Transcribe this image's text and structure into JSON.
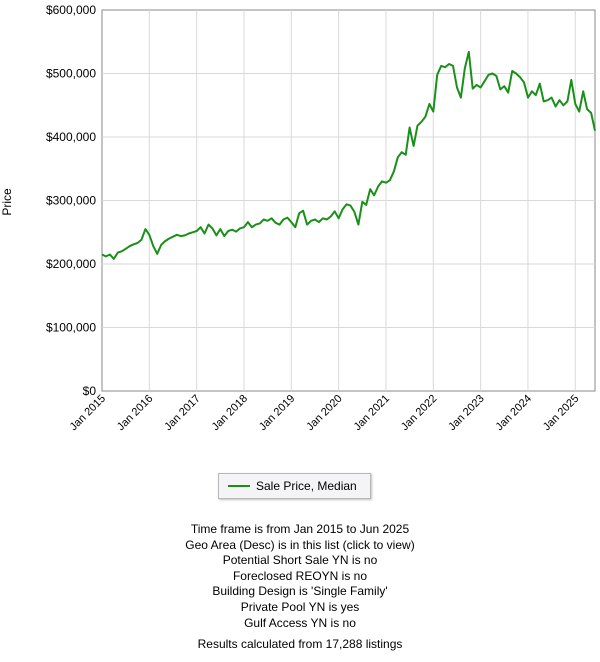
{
  "chart_data": {
    "type": "line",
    "ylabel": "Price",
    "xlabel": "",
    "ylim": [
      0,
      600000
    ],
    "xlim": [
      "2015-01",
      "2025-06"
    ],
    "grid": true,
    "y_ticks": [
      "$0",
      "$100,000",
      "$200,000",
      "$300,000",
      "$400,000",
      "$500,000",
      "$600,000"
    ],
    "x_ticks": [
      "Jan 2015",
      "Jan 2016",
      "Jan 2017",
      "Jan 2018",
      "Jan 2019",
      "Jan 2020",
      "Jan 2021",
      "Jan 2022",
      "Jan 2023",
      "Jan 2024",
      "Jan 2025"
    ],
    "series": [
      {
        "name": "Sale Price, Median",
        "color": "#1a8f1a",
        "x": [
          "2015-01",
          "2015-02",
          "2015-03",
          "2015-04",
          "2015-05",
          "2015-06",
          "2015-07",
          "2015-08",
          "2015-09",
          "2015-10",
          "2015-11",
          "2015-12",
          "2016-01",
          "2016-02",
          "2016-03",
          "2016-04",
          "2016-05",
          "2016-06",
          "2016-07",
          "2016-08",
          "2016-09",
          "2016-10",
          "2016-11",
          "2016-12",
          "2017-01",
          "2017-02",
          "2017-03",
          "2017-04",
          "2017-05",
          "2017-06",
          "2017-07",
          "2017-08",
          "2017-09",
          "2017-10",
          "2017-11",
          "2017-12",
          "2018-01",
          "2018-02",
          "2018-03",
          "2018-04",
          "2018-05",
          "2018-06",
          "2018-07",
          "2018-08",
          "2018-09",
          "2018-10",
          "2018-11",
          "2018-12",
          "2019-01",
          "2019-02",
          "2019-03",
          "2019-04",
          "2019-05",
          "2019-06",
          "2019-07",
          "2019-08",
          "2019-09",
          "2019-10",
          "2019-11",
          "2019-12",
          "2020-01",
          "2020-02",
          "2020-03",
          "2020-04",
          "2020-05",
          "2020-06",
          "2020-07",
          "2020-08",
          "2020-09",
          "2020-10",
          "2020-11",
          "2020-12",
          "2021-01",
          "2021-02",
          "2021-03",
          "2021-04",
          "2021-05",
          "2021-06",
          "2021-07",
          "2021-08",
          "2021-09",
          "2021-10",
          "2021-11",
          "2021-12",
          "2022-01",
          "2022-02",
          "2022-03",
          "2022-04",
          "2022-05",
          "2022-06",
          "2022-07",
          "2022-08",
          "2022-09",
          "2022-10",
          "2022-11",
          "2022-12",
          "2023-01",
          "2023-02",
          "2023-03",
          "2023-04",
          "2023-05",
          "2023-06",
          "2023-07",
          "2023-08",
          "2023-09",
          "2023-10",
          "2023-11",
          "2023-12",
          "2024-01",
          "2024-02",
          "2024-03",
          "2024-04",
          "2024-05",
          "2024-06",
          "2024-07",
          "2024-08",
          "2024-09",
          "2024-10",
          "2024-11",
          "2024-12",
          "2025-01",
          "2025-02",
          "2025-03",
          "2025-04",
          "2025-05",
          "2025-06"
        ],
        "values": [
          215000,
          212000,
          215000,
          208000,
          218000,
          220000,
          224000,
          228000,
          231000,
          233000,
          238000,
          255000,
          246000,
          228000,
          216000,
          230000,
          236000,
          240000,
          243000,
          246000,
          244000,
          245000,
          248000,
          250000,
          252000,
          258000,
          248000,
          262000,
          256000,
          245000,
          255000,
          244000,
          252000,
          254000,
          251000,
          256000,
          258000,
          266000,
          258000,
          262000,
          264000,
          270000,
          268000,
          272000,
          265000,
          262000,
          270000,
          273000,
          266000,
          258000,
          280000,
          284000,
          262000,
          268000,
          270000,
          266000,
          272000,
          270000,
          275000,
          283000,
          272000,
          286000,
          294000,
          292000,
          282000,
          262000,
          298000,
          293000,
          318000,
          308000,
          322000,
          330000,
          328000,
          332000,
          346000,
          368000,
          376000,
          372000,
          415000,
          386000,
          418000,
          424000,
          432000,
          452000,
          440000,
          498000,
          512000,
          510000,
          515000,
          512000,
          478000,
          462000,
          508000,
          534000,
          476000,
          482000,
          478000,
          488000,
          498000,
          500000,
          496000,
          475000,
          480000,
          470000,
          504000,
          500000,
          494000,
          486000,
          462000,
          472000,
          466000,
          484000,
          456000,
          458000,
          462000,
          448000,
          458000,
          450000,
          456000,
          490000,
          452000,
          440000,
          472000,
          444000,
          438000,
          410000
        ]
      }
    ]
  },
  "legend": {
    "label": "Sale Price, Median",
    "color": "#1a8f1a"
  },
  "criteria": {
    "lines": [
      "Time frame is from Jan 2015 to Jun 2025",
      "Geo Area (Desc) is in this list (click to view)",
      "Potential Short Sale YN is no",
      "Foreclosed REOYN is no",
      "Building Design is 'Single Family'",
      "Private Pool YN is yes",
      "Gulf Access YN is no"
    ],
    "results": "Results calculated from 17,288 listings"
  }
}
